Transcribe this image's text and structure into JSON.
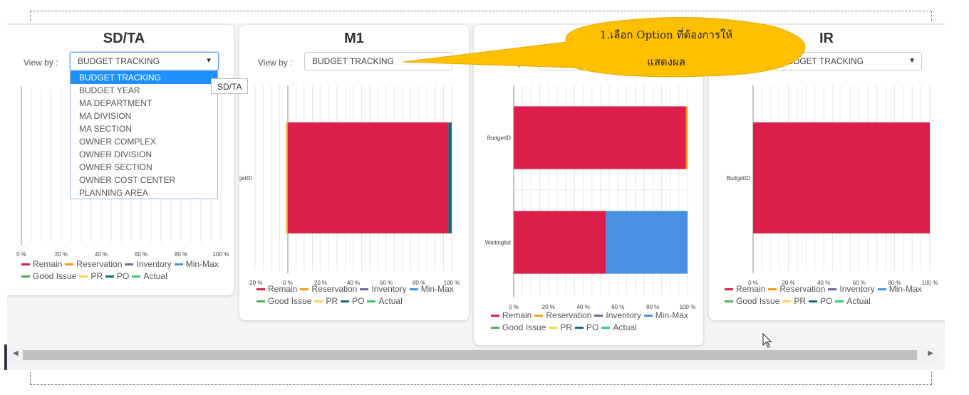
{
  "cards": [
    {
      "title": "SD/TA",
      "viewby_label": "View by :",
      "select_value": "BUDGET TRACKING",
      "caret": "▼"
    },
    {
      "title": "M1",
      "viewby_label": "View by :",
      "select_value": "BUDGET TRACKING"
    },
    {
      "title": "",
      "viewby_label": "View by :",
      "select_value": ""
    },
    {
      "title": "IR",
      "viewby_label": "View by :",
      "select_value": "BUDGET TRACKING",
      "caret": "▼"
    }
  ],
  "dropdown_options": [
    "BUDGET TRACKING",
    "BUDGET YEAR",
    "MA DEPARTMENT",
    "MA DIVISION",
    "MA SECTION",
    "OWNER COMPLEX",
    "OWNER DIVISION",
    "OWNER SECTION",
    "OWNER COST CENTER",
    "PLANNING AREA"
  ],
  "tooltip_text": "SD/TA",
  "callout": {
    "line1": "1.เลือก Option ที่ต้องการให้",
    "line2": "แสดงผล",
    "color": "#ffc000"
  },
  "legend": {
    "row1": [
      "Remain",
      "Reservation",
      "Inventory",
      "Min-Max"
    ],
    "row2": [
      "Good Issue",
      "PR",
      "PO",
      "Actual"
    ],
    "colors": {
      "Remain": "#dc1e4a",
      "Reservation": "#f39c12",
      "Inventory": "#6a6aa0",
      "Min-Max": "#4a90e2",
      "Good Issue": "#4caf50",
      "PR": "#ffd54f",
      "PO": "#0d6e7a",
      "Actual": "#2ecc71"
    }
  },
  "chart_data": [
    {
      "type": "bar",
      "title": "SD/TA",
      "orientation": "horizontal",
      "stacked": true,
      "xlim": [
        0,
        100
      ],
      "x_ticks": [
        "0 %",
        "20 %",
        "40 %",
        "60 %",
        "80 %",
        "100 %"
      ],
      "categories": [],
      "series": []
    },
    {
      "type": "bar",
      "title": "M1",
      "orientation": "horizontal",
      "stacked": true,
      "xlim": [
        -20,
        100
      ],
      "x_ticks": [
        "-20 %",
        "0 %",
        "20 %",
        "40 %",
        "60 %",
        "80 %",
        "100 %"
      ],
      "categories": [
        "BudgetID"
      ],
      "series": [
        {
          "name": "Reservation",
          "values": [
            -1
          ]
        },
        {
          "name": "Remain",
          "values": [
            98
          ]
        },
        {
          "name": "PO",
          "values": [
            2
          ]
        }
      ]
    },
    {
      "type": "bar",
      "title": "",
      "orientation": "horizontal",
      "stacked": true,
      "xlim": [
        0,
        100
      ],
      "x_ticks": [
        "0 %",
        "20 %",
        "40 %",
        "60 %",
        "80 %",
        "100 %"
      ],
      "categories": [
        "BudgetID",
        "Waitinglist"
      ],
      "series": [
        {
          "name": "Remain",
          "values": [
            99,
            53
          ]
        },
        {
          "name": "Reservation",
          "values": [
            1,
            0
          ]
        },
        {
          "name": "Min-Max",
          "values": [
            0,
            47
          ]
        }
      ]
    },
    {
      "type": "bar",
      "title": "IR",
      "orientation": "horizontal",
      "stacked": true,
      "xlim": [
        0,
        100
      ],
      "x_ticks": [
        "0 %",
        "20 %",
        "40 %",
        "60 %",
        "80 %",
        "100 %"
      ],
      "categories": [
        "BudgetID"
      ],
      "series": [
        {
          "name": "Remain",
          "values": [
            100
          ]
        }
      ]
    }
  ],
  "scroll": {
    "left_arrow": "◀",
    "right_arrow": "▶"
  }
}
